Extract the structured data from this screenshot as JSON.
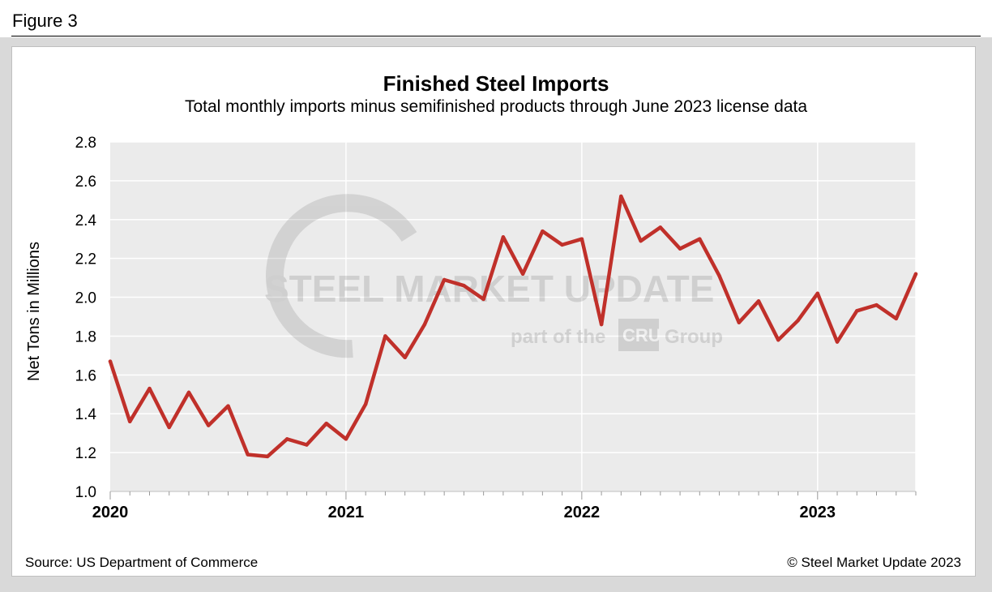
{
  "figure": {
    "label": "Figure 3"
  },
  "footer": {
    "source": "Source: US Department of Commerce",
    "copyright": "© Steel Market Update 2023"
  },
  "watermark": {
    "line1": "STEEL MARKET UPDATE",
    "line2_prefix": "part of the",
    "line2_badge": "CRU",
    "line2_suffix": "Group"
  },
  "colors": {
    "line": "#c0302a",
    "plot_bg": "#ebebeb",
    "grid": "#ffffff"
  },
  "chart_data": {
    "type": "line",
    "title": "Finished Steel Imports",
    "subtitle": "Total monthly imports minus semifinished products through June 2023 license data",
    "xlabel": "",
    "ylabel": "Net Tons in Millions",
    "ylim": [
      1.0,
      2.8
    ],
    "yticks": [
      "1.0",
      "1.2",
      "1.4",
      "1.6",
      "1.8",
      "2.0",
      "2.2",
      "2.4",
      "2.6",
      "2.8"
    ],
    "x_tick_labels": [
      "2020",
      "2021",
      "2022",
      "2023"
    ],
    "start": "2020-01",
    "end": "2023-06",
    "series": [
      {
        "name": "Finished Steel Imports",
        "values": [
          1.67,
          1.36,
          1.53,
          1.33,
          1.51,
          1.34,
          1.44,
          1.19,
          1.18,
          1.27,
          1.24,
          1.35,
          1.27,
          1.45,
          1.8,
          1.69,
          1.86,
          2.09,
          2.06,
          1.99,
          2.31,
          2.12,
          2.34,
          2.27,
          2.3,
          1.86,
          2.52,
          2.29,
          2.36,
          2.25,
          2.3,
          2.11,
          1.87,
          1.98,
          1.78,
          1.88,
          2.02,
          1.77,
          1.93,
          1.96,
          1.89,
          2.12
        ]
      }
    ],
    "grid": true
  }
}
